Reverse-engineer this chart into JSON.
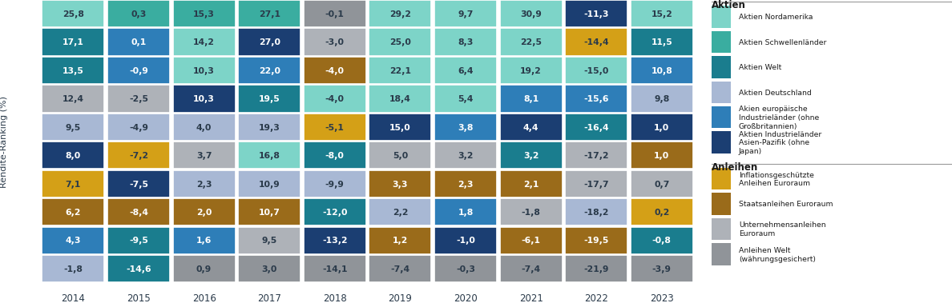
{
  "years": [
    "2014",
    "2015",
    "2016",
    "2017",
    "2018",
    "2019",
    "2020",
    "2021",
    "2022",
    "2023"
  ],
  "table": [
    [
      {
        "v": "25,8",
        "c": "#7dd4c8"
      },
      {
        "v": "0,3",
        "c": "#3aada0"
      },
      {
        "v": "15,3",
        "c": "#3aada0"
      },
      {
        "v": "27,1",
        "c": "#3aada0"
      },
      {
        "v": "-0,1",
        "c": "#909499"
      },
      {
        "v": "29,2",
        "c": "#7dd4c8"
      },
      {
        "v": "9,7",
        "c": "#7dd4c8"
      },
      {
        "v": "30,9",
        "c": "#7dd4c8"
      },
      {
        "v": "-11,3",
        "c": "#1b3e72"
      },
      {
        "v": "15,2",
        "c": "#7dd4c8"
      }
    ],
    [
      {
        "v": "17,1",
        "c": "#1a7d8e"
      },
      {
        "v": "0,1",
        "c": "#2e7eb8"
      },
      {
        "v": "14,2",
        "c": "#7dd4c8"
      },
      {
        "v": "27,0",
        "c": "#1b3e72"
      },
      {
        "v": "-3,0",
        "c": "#aeb2b8"
      },
      {
        "v": "25,0",
        "c": "#7dd4c8"
      },
      {
        "v": "8,3",
        "c": "#7dd4c8"
      },
      {
        "v": "22,5",
        "c": "#7dd4c8"
      },
      {
        "v": "-14,4",
        "c": "#d4a017"
      },
      {
        "v": "11,5",
        "c": "#1a7d8e"
      }
    ],
    [
      {
        "v": "13,5",
        "c": "#1a7d8e"
      },
      {
        "v": "-0,9",
        "c": "#2e7eb8"
      },
      {
        "v": "10,3",
        "c": "#7dd4c8"
      },
      {
        "v": "22,0",
        "c": "#2e7eb8"
      },
      {
        "v": "-4,0",
        "c": "#9a6b1a"
      },
      {
        "v": "22,1",
        "c": "#7dd4c8"
      },
      {
        "v": "6,4",
        "c": "#7dd4c8"
      },
      {
        "v": "19,2",
        "c": "#7dd4c8"
      },
      {
        "v": "-15,0",
        "c": "#7dd4c8"
      },
      {
        "v": "10,8",
        "c": "#2e7eb8"
      }
    ],
    [
      {
        "v": "12,4",
        "c": "#aeb2b8"
      },
      {
        "v": "-2,5",
        "c": "#aeb2b8"
      },
      {
        "v": "10,3",
        "c": "#1b3e72"
      },
      {
        "v": "19,5",
        "c": "#1a7d8e"
      },
      {
        "v": "-4,0",
        "c": "#7dd4c8"
      },
      {
        "v": "18,4",
        "c": "#7dd4c8"
      },
      {
        "v": "5,4",
        "c": "#7dd4c8"
      },
      {
        "v": "8,1",
        "c": "#2e7eb8"
      },
      {
        "v": "-15,6",
        "c": "#2e7eb8"
      },
      {
        "v": "9,8",
        "c": "#a8b8d4"
      }
    ],
    [
      {
        "v": "9,5",
        "c": "#a8b8d4"
      },
      {
        "v": "-4,9",
        "c": "#a8b8d4"
      },
      {
        "v": "4,0",
        "c": "#a8b8d4"
      },
      {
        "v": "19,3",
        "c": "#a8b8d4"
      },
      {
        "v": "-5,1",
        "c": "#d4a017"
      },
      {
        "v": "15,0",
        "c": "#1b3e72"
      },
      {
        "v": "3,8",
        "c": "#2e7eb8"
      },
      {
        "v": "4,4",
        "c": "#1b3e72"
      },
      {
        "v": "-16,4",
        "c": "#1a7d8e"
      },
      {
        "v": "1,0",
        "c": "#1b3e72"
      }
    ],
    [
      {
        "v": "8,0",
        "c": "#1b3e72"
      },
      {
        "v": "-7,2",
        "c": "#d4a017"
      },
      {
        "v": "3,7",
        "c": "#aeb2b8"
      },
      {
        "v": "16,8",
        "c": "#7dd4c8"
      },
      {
        "v": "-8,0",
        "c": "#1a7d8e"
      },
      {
        "v": "5,0",
        "c": "#aeb2b8"
      },
      {
        "v": "3,2",
        "c": "#aeb2b8"
      },
      {
        "v": "3,2",
        "c": "#1a7d8e"
      },
      {
        "v": "-17,2",
        "c": "#aeb2b8"
      },
      {
        "v": "1,0",
        "c": "#9a6b1a"
      }
    ],
    [
      {
        "v": "7,1",
        "c": "#d4a017"
      },
      {
        "v": "-7,5",
        "c": "#1b3e72"
      },
      {
        "v": "2,3",
        "c": "#a8b8d4"
      },
      {
        "v": "10,9",
        "c": "#a8b8d4"
      },
      {
        "v": "-9,9",
        "c": "#a8b8d4"
      },
      {
        "v": "3,3",
        "c": "#9a6b1a"
      },
      {
        "v": "2,3",
        "c": "#9a6b1a"
      },
      {
        "v": "2,1",
        "c": "#9a6b1a"
      },
      {
        "v": "-17,7",
        "c": "#aeb2b8"
      },
      {
        "v": "0,7",
        "c": "#aeb2b8"
      }
    ],
    [
      {
        "v": "6,2",
        "c": "#9a6b1a"
      },
      {
        "v": "-8,4",
        "c": "#9a6b1a"
      },
      {
        "v": "2,0",
        "c": "#9a6b1a"
      },
      {
        "v": "10,7",
        "c": "#9a6b1a"
      },
      {
        "v": "-12,0",
        "c": "#1a7d8e"
      },
      {
        "v": "2,2",
        "c": "#a8b8d4"
      },
      {
        "v": "1,8",
        "c": "#2e7eb8"
      },
      {
        "v": "-1,8",
        "c": "#aeb2b8"
      },
      {
        "v": "-18,2",
        "c": "#a8b8d4"
      },
      {
        "v": "0,2",
        "c": "#d4a017"
      }
    ],
    [
      {
        "v": "4,3",
        "c": "#2e7eb8"
      },
      {
        "v": "-9,5",
        "c": "#1a7d8e"
      },
      {
        "v": "1,6",
        "c": "#2e7eb8"
      },
      {
        "v": "9,5",
        "c": "#aeb2b8"
      },
      {
        "v": "-13,2",
        "c": "#1b3e72"
      },
      {
        "v": "1,2",
        "c": "#9a6b1a"
      },
      {
        "v": "-1,0",
        "c": "#1b3e72"
      },
      {
        "v": "-6,1",
        "c": "#9a6b1a"
      },
      {
        "v": "-19,5",
        "c": "#9a6b1a"
      },
      {
        "v": "-0,8",
        "c": "#1a7d8e"
      }
    ],
    [
      {
        "v": "-1,8",
        "c": "#a8b8d4"
      },
      {
        "v": "-14,6",
        "c": "#1a7d8e"
      },
      {
        "v": "0,9",
        "c": "#909499"
      },
      {
        "v": "3,0",
        "c": "#909499"
      },
      {
        "v": "-14,1",
        "c": "#909499"
      },
      {
        "v": "-7,4",
        "c": "#909499"
      },
      {
        "v": "-0,3",
        "c": "#909499"
      },
      {
        "v": "-7,4",
        "c": "#909499"
      },
      {
        "v": "-21,9",
        "c": "#909499"
      },
      {
        "v": "-3,9",
        "c": "#909499"
      }
    ]
  ],
  "ylabel": "Rendite-Ranking (%)",
  "aktien_legend": [
    {
      "label": "Aktien Nordamerika",
      "color": "#7dd4c8"
    },
    {
      "label": "Aktien Schwellenländer",
      "color": "#3aada0"
    },
    {
      "label": "Aktien Welt",
      "color": "#1a7d8e"
    },
    {
      "label": "Aktien Deutschland",
      "color": "#a8b8d4"
    },
    {
      "label": "Akien europäische Industrieländer (ohne Großbritannien)",
      "color": "#2e7eb8"
    },
    {
      "label": "Aktien Industrieländer Asien-Pazifik (ohne Japan)",
      "color": "#1b3e72"
    }
  ],
  "anleihen_legend": [
    {
      "label": "Inflationsgeschützte Anleihen Euroraum",
      "color": "#d4a017"
    },
    {
      "label": "Staatsanleihen Euroraum",
      "color": "#9a6b1a"
    },
    {
      "label": "Unternehmensanleihen Euroraum",
      "color": "#aeb2b8"
    },
    {
      "label": "Anleihen Welt (währungsgesichert)",
      "color": "#909499"
    }
  ]
}
